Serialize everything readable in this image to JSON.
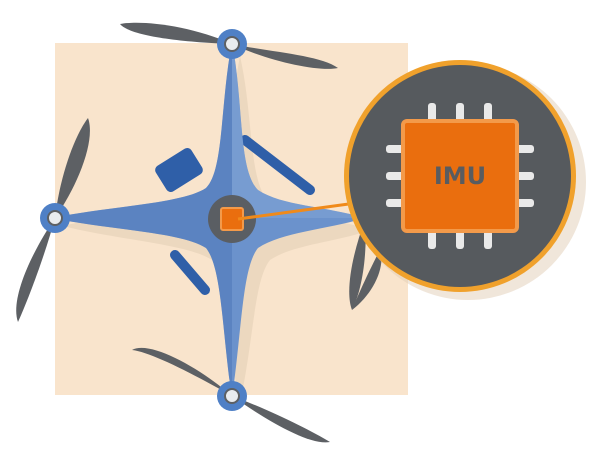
{
  "diagram": {
    "chip_label": "IMU"
  },
  "colors": {
    "background_panel": "#f9e4cc",
    "drone_body": "#6b92cc",
    "drone_body_shadow": "#4f77b8",
    "drone_body_highlight": "#87a8d8",
    "landing_skid": "#2f5fa8",
    "propeller": "#5d6064",
    "motor_hub": "#4f80c6",
    "motor_center": "#e9ecef",
    "center_disc": "#5a5e63",
    "chip": "#ea6e0e",
    "chip_border": "#f39a4a",
    "chip_pins": "#e9e9e9",
    "chip_text": "#595c60",
    "callout_ring": "#f0a12c",
    "callout_fill": "#565a5e",
    "callout_line": "#f08a1a",
    "shadow": "#e2cdb5"
  }
}
